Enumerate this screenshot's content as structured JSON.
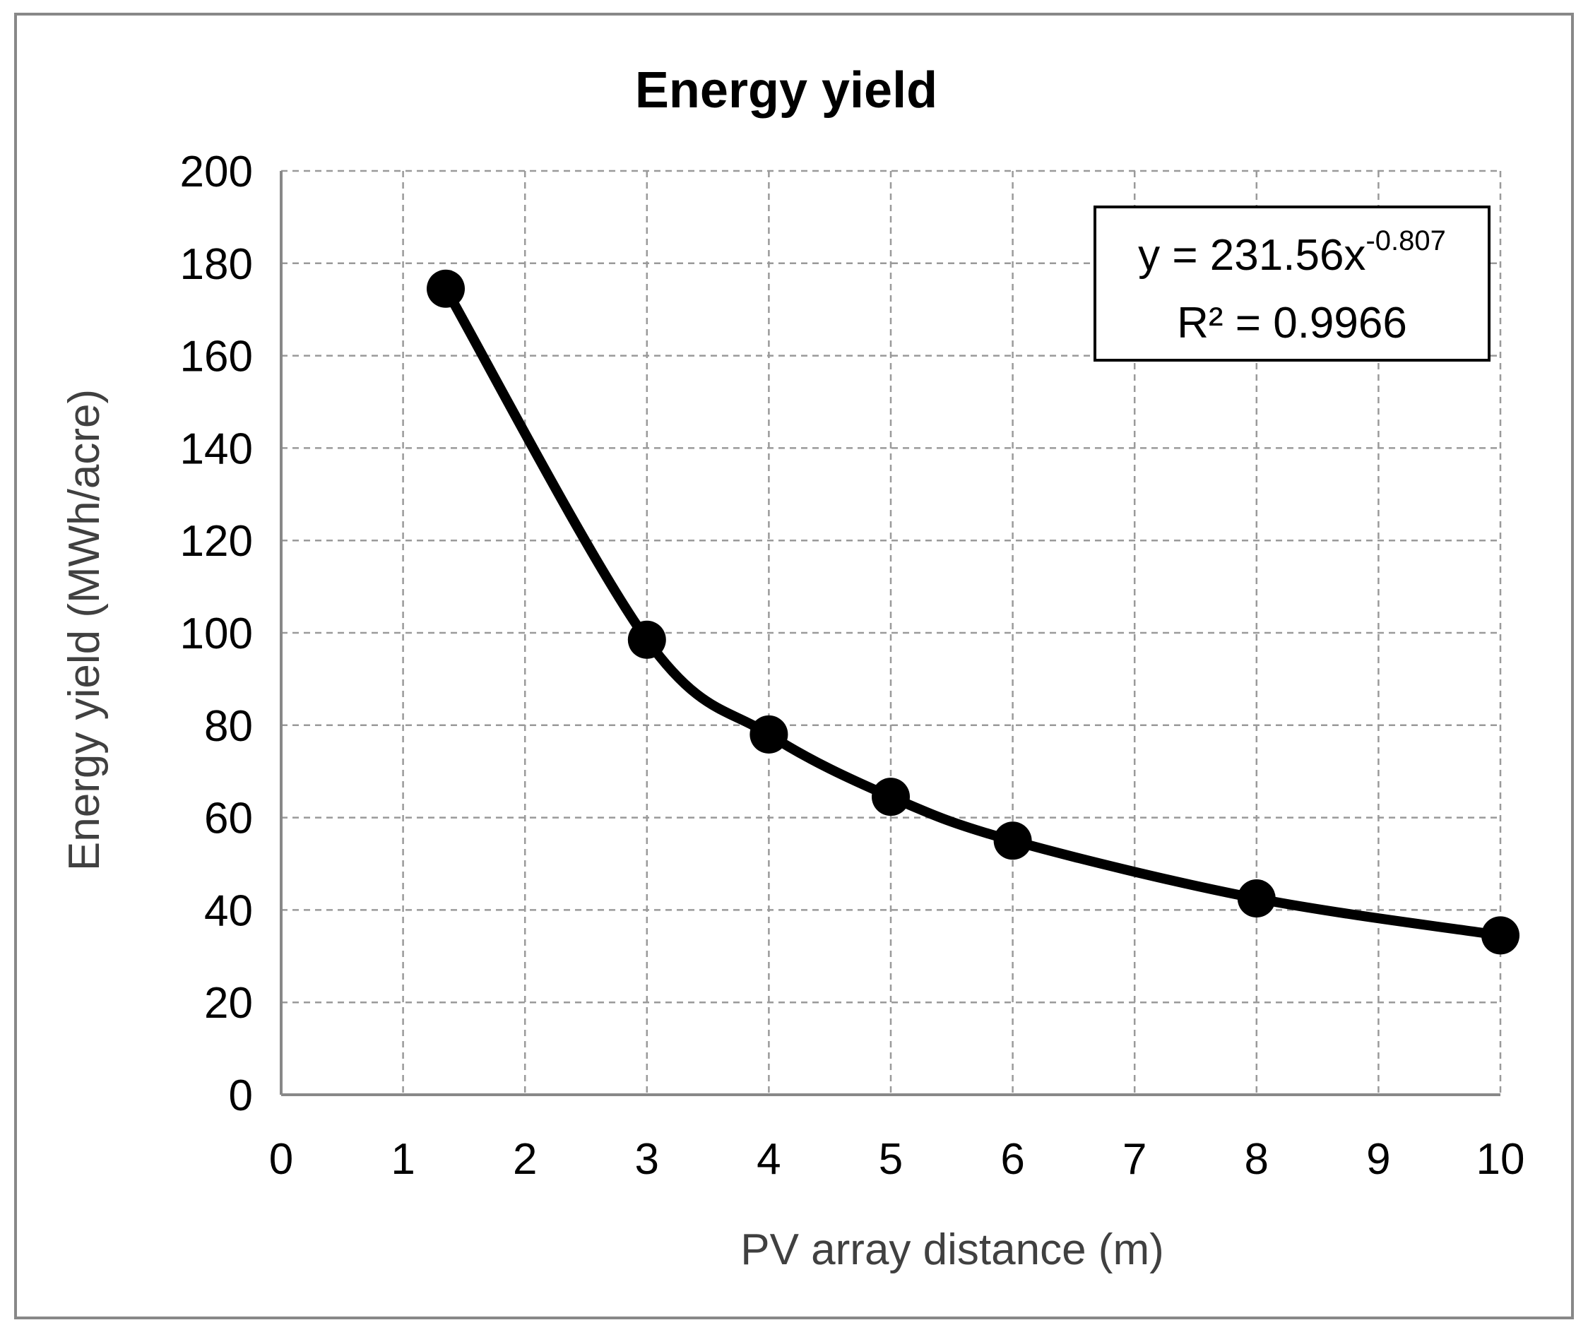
{
  "chart_data": {
    "type": "scatter",
    "title": "Energy yield",
    "xlabel": "PV array distance (m)",
    "ylabel": "Energy yield (MWh/acre)",
    "xlim": [
      0,
      10
    ],
    "ylim": [
      0,
      200
    ],
    "x_ticks": [
      0,
      1,
      2,
      3,
      4,
      5,
      6,
      7,
      8,
      9,
      10
    ],
    "y_ticks": [
      0,
      20,
      40,
      60,
      80,
      100,
      120,
      140,
      160,
      180,
      200
    ],
    "grid": true,
    "series": [
      {
        "name": "Energy yield",
        "points": [
          {
            "x": 1.35,
            "y": 174.5
          },
          {
            "x": 3,
            "y": 98.5
          },
          {
            "x": 4,
            "y": 78
          },
          {
            "x": 5,
            "y": 64.5
          },
          {
            "x": 6,
            "y": 55
          },
          {
            "x": 8,
            "y": 42.5
          },
          {
            "x": 10,
            "y": 34.5
          }
        ],
        "color": "#000000",
        "smoothed_line": true
      }
    ],
    "annotations": {
      "trendline_equation_base": "y = 231.56x",
      "trendline_equation_exponent": "-0.807",
      "r_squared_label": "R² = 0.9966",
      "placement": "top-right"
    }
  },
  "colors": {
    "border": "#888888",
    "grid": "#9a9a9a",
    "axis": "#888888",
    "title": "#000000",
    "label": "#404040",
    "tick": "#000000",
    "marker": "#000000"
  }
}
